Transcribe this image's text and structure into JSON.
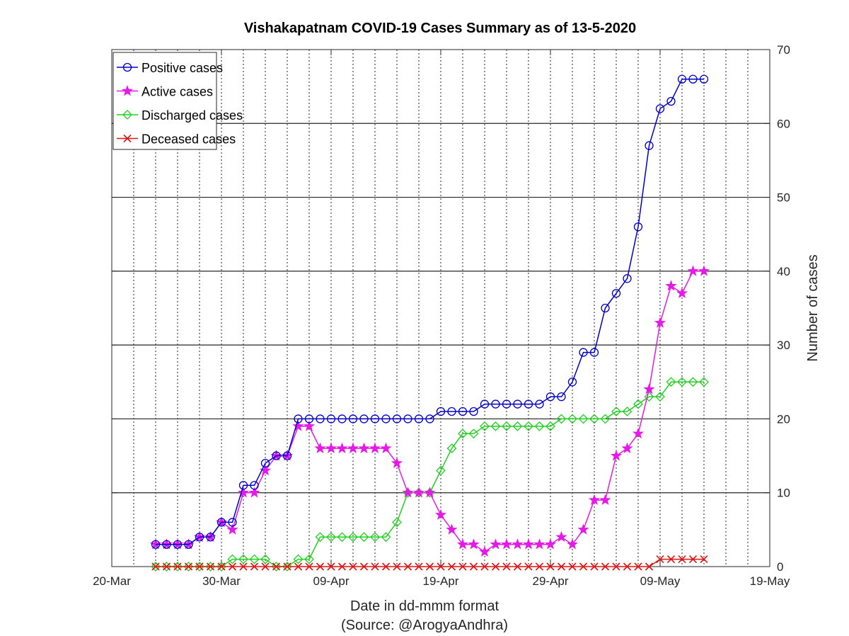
{
  "chart_data": {
    "type": "line",
    "title": "Vishakapatnam COVID-19 Cases Summary as of 13-5-2020",
    "xlabel": "Date in dd-mmm format",
    "xlabel_source": "(Source: @ArogyaAndhra)",
    "ylabel": "Number of cases",
    "ylim": [
      0,
      70
    ],
    "yticks": [
      0,
      10,
      20,
      30,
      40,
      50,
      60,
      70
    ],
    "xlim": [
      "2020-03-20",
      "2020-05-19"
    ],
    "xticks": [
      "2020-03-20",
      "2020-03-30",
      "2020-04-09",
      "2020-04-19",
      "2020-04-29",
      "2020-05-09",
      "2020-05-19"
    ],
    "xtick_labels": [
      "20-Mar",
      "30-Mar",
      "09-Apr",
      "19-Apr",
      "29-Apr",
      "09-May",
      "19-May"
    ],
    "y_axis_side": "right",
    "grid": "x minor dotted, y major solid",
    "legend_position": "top-left",
    "x": [
      "2020-03-24",
      "2020-03-25",
      "2020-03-26",
      "2020-03-27",
      "2020-03-28",
      "2020-03-29",
      "2020-03-30",
      "2020-03-31",
      "2020-04-01",
      "2020-04-02",
      "2020-04-03",
      "2020-04-04",
      "2020-04-05",
      "2020-04-06",
      "2020-04-07",
      "2020-04-08",
      "2020-04-09",
      "2020-04-10",
      "2020-04-11",
      "2020-04-12",
      "2020-04-13",
      "2020-04-14",
      "2020-04-15",
      "2020-04-16",
      "2020-04-17",
      "2020-04-18",
      "2020-04-19",
      "2020-04-20",
      "2020-04-21",
      "2020-04-22",
      "2020-04-23",
      "2020-04-24",
      "2020-04-25",
      "2020-04-26",
      "2020-04-27",
      "2020-04-28",
      "2020-04-29",
      "2020-04-30",
      "2020-05-01",
      "2020-05-02",
      "2020-05-03",
      "2020-05-04",
      "2020-05-05",
      "2020-05-06",
      "2020-05-07",
      "2020-05-08",
      "2020-05-09",
      "2020-05-10",
      "2020-05-11",
      "2020-05-12",
      "2020-05-13"
    ],
    "series": [
      {
        "name": "Positive cases",
        "color": "#0000cd",
        "marker": "circle",
        "values": [
          3,
          3,
          3,
          3,
          4,
          4,
          6,
          6,
          11,
          11,
          14,
          15,
          15,
          20,
          20,
          20,
          20,
          20,
          20,
          20,
          20,
          20,
          20,
          20,
          20,
          20,
          21,
          21,
          21,
          21,
          22,
          22,
          22,
          22,
          22,
          22,
          23,
          23,
          25,
          29,
          29,
          35,
          37,
          39,
          46,
          57,
          62,
          63,
          66,
          66,
          66
        ]
      },
      {
        "name": "Active cases",
        "color": "#e619e6",
        "marker": "star",
        "values": [
          3,
          3,
          3,
          3,
          4,
          4,
          6,
          5,
          10,
          10,
          13,
          15,
          15,
          19,
          19,
          16,
          16,
          16,
          16,
          16,
          16,
          16,
          14,
          10,
          10,
          10,
          7,
          5,
          3,
          3,
          2,
          3,
          3,
          3,
          3,
          3,
          3,
          4,
          3,
          5,
          9,
          9,
          15,
          16,
          18,
          24,
          33,
          38,
          37,
          40,
          40
        ]
      },
      {
        "name": "Discharged cases",
        "color": "#1ed21e",
        "marker": "diamond",
        "values": [
          0,
          0,
          0,
          0,
          0,
          0,
          0,
          1,
          1,
          1,
          1,
          0,
          0,
          1,
          1,
          4,
          4,
          4,
          4,
          4,
          4,
          4,
          6,
          10,
          10,
          10,
          13,
          16,
          18,
          18,
          19,
          19,
          19,
          19,
          19,
          19,
          19,
          20,
          20,
          20,
          20,
          20,
          21,
          21,
          22,
          23,
          23,
          25,
          25,
          25,
          25
        ]
      },
      {
        "name": "Deceased cases",
        "color": "#e01414",
        "marker": "x",
        "values": [
          0,
          0,
          0,
          0,
          0,
          0,
          0,
          0,
          0,
          0,
          0,
          0,
          0,
          0,
          0,
          0,
          0,
          0,
          0,
          0,
          0,
          0,
          0,
          0,
          0,
          0,
          0,
          0,
          0,
          0,
          0,
          0,
          0,
          0,
          0,
          0,
          0,
          0,
          0,
          0,
          0,
          0,
          0,
          0,
          0,
          0,
          1,
          1,
          1,
          1,
          1
        ]
      }
    ]
  }
}
